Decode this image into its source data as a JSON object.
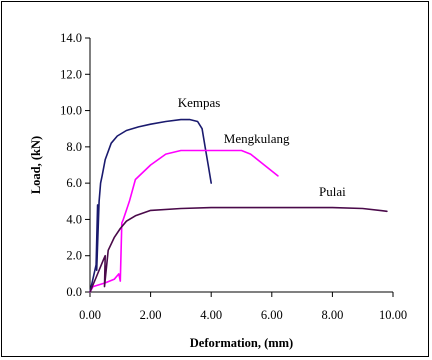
{
  "chart_data": {
    "type": "line",
    "title": "",
    "xlabel": "Deformation, (mm)",
    "ylabel": "Load, (kN)",
    "xlim": [
      0,
      10
    ],
    "ylim": [
      0,
      14
    ],
    "x_ticks": [
      "0.00",
      "2.00",
      "4.00",
      "6.00",
      "8.00",
      "10.00"
    ],
    "y_ticks": [
      "0.0",
      "2.0",
      "4.0",
      "6.0",
      "8.0",
      "10.0",
      "12.0",
      "14.0"
    ],
    "grid": false,
    "legend": "none",
    "series": [
      {
        "name": "Kempas",
        "color": "#1a1a6e",
        "x": [
          0.0,
          0.2,
          0.25,
          0.22,
          0.3,
          0.35,
          0.4,
          0.5,
          0.7,
          0.9,
          1.2,
          1.6,
          2.0,
          2.5,
          3.0,
          3.3,
          3.55,
          3.7,
          3.8,
          3.9,
          4.0
        ],
        "y": [
          0.0,
          1.5,
          4.8,
          1.2,
          5.0,
          6.0,
          6.4,
          7.3,
          8.2,
          8.6,
          8.9,
          9.1,
          9.25,
          9.4,
          9.5,
          9.5,
          9.4,
          9.0,
          8.0,
          7.0,
          6.0
        ]
      },
      {
        "name": "Mengkulang",
        "color": "#ff00ff",
        "x": [
          0.0,
          0.1,
          0.5,
          0.8,
          0.95,
          1.0,
          1.05,
          1.1,
          1.3,
          1.5,
          2.0,
          2.5,
          3.0,
          4.0,
          4.5,
          5.0,
          5.3,
          5.6,
          5.9,
          6.2
        ],
        "y": [
          0.0,
          0.3,
          0.5,
          0.7,
          1.0,
          0.6,
          3.8,
          4.0,
          5.0,
          6.2,
          7.0,
          7.6,
          7.8,
          7.8,
          7.8,
          7.8,
          7.6,
          7.2,
          6.8,
          6.4
        ]
      },
      {
        "name": "Pulai",
        "color": "#4a0a4a",
        "x": [
          0.0,
          0.2,
          0.45,
          0.5,
          0.48,
          0.6,
          0.8,
          1.0,
          1.2,
          1.5,
          2.0,
          3.0,
          4.0,
          6.0,
          8.0,
          9.0,
          9.8
        ],
        "y": [
          0.0,
          0.8,
          1.8,
          2.0,
          0.3,
          2.3,
          3.0,
          3.5,
          3.9,
          4.2,
          4.5,
          4.6,
          4.65,
          4.65,
          4.65,
          4.6,
          4.45
        ]
      }
    ],
    "annotations": [
      {
        "text": "Kempas",
        "x": 3.6,
        "y": 10.2
      },
      {
        "text": "Mengkulang",
        "x": 5.5,
        "y": 8.2
      },
      {
        "text": "Pulai",
        "x": 8.0,
        "y": 5.3
      }
    ]
  }
}
